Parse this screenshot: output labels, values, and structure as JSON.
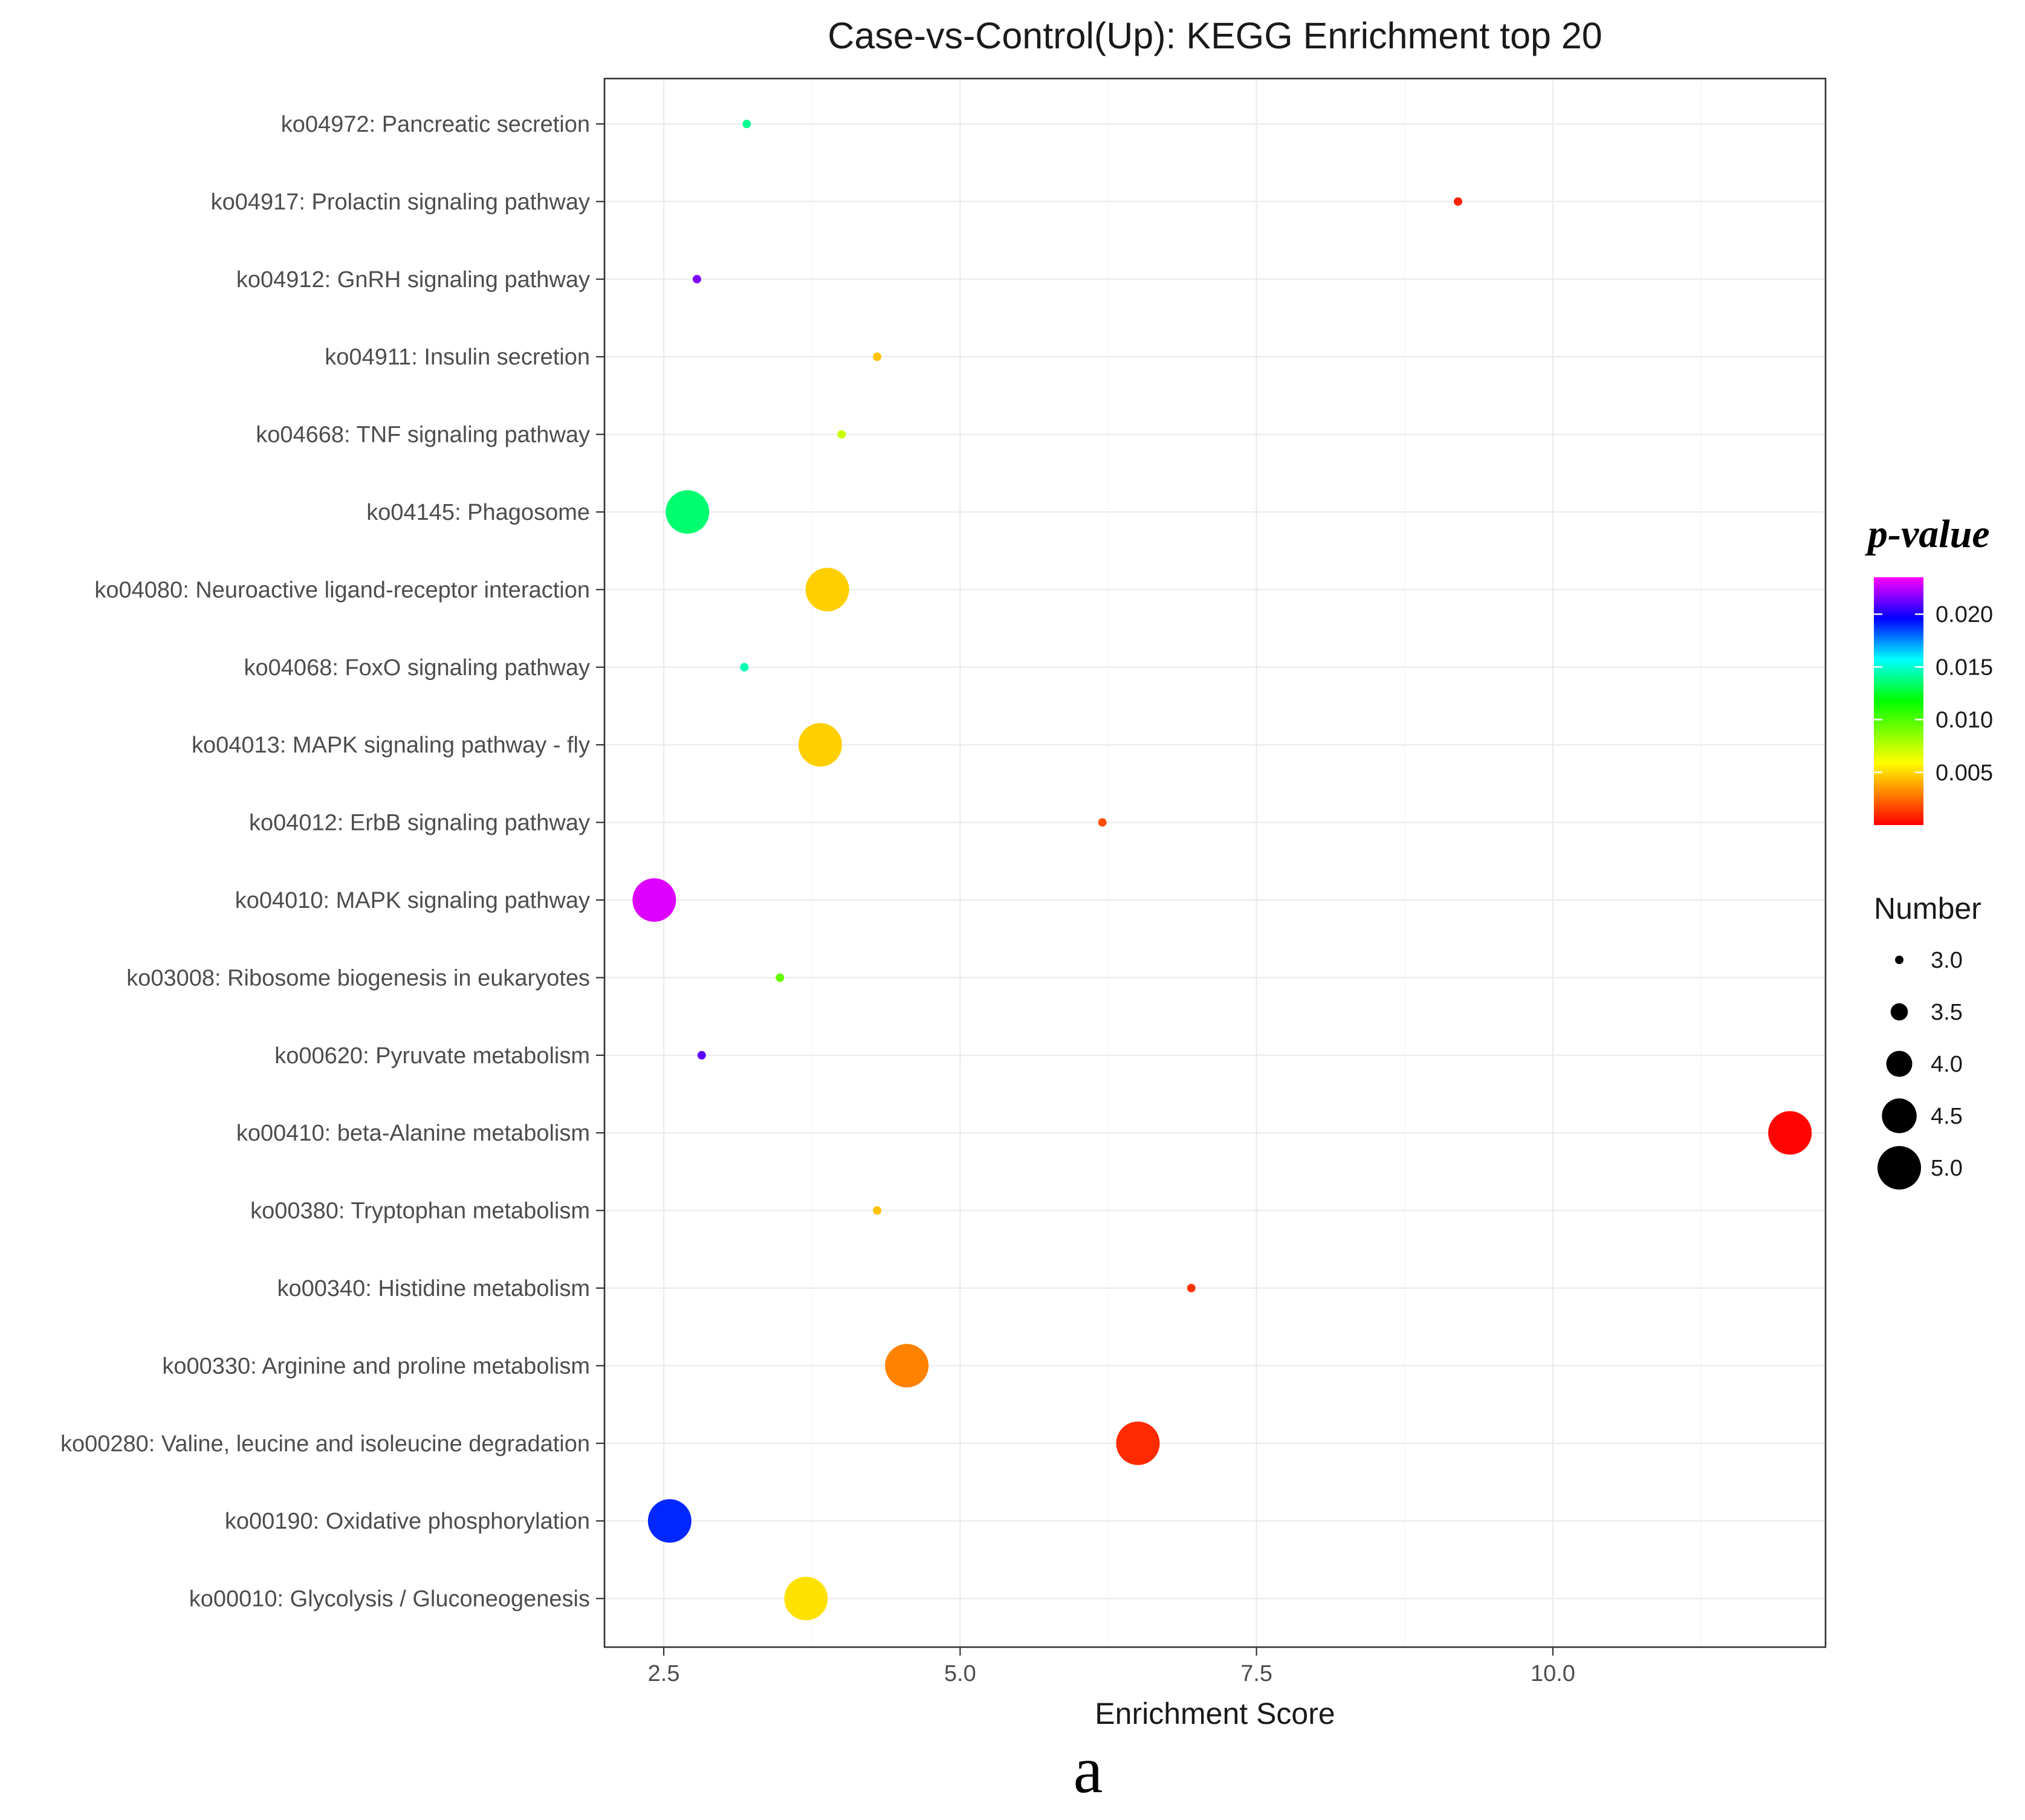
{
  "chart_data": {
    "type": "scatter",
    "title": "Case-vs-Control(Up): KEGG Enrichment top 20",
    "xlabel": "Enrichment Score",
    "ylabel": "",
    "xlim": [
      2.0,
      12.3
    ],
    "x_ticks": [
      2.5,
      5.0,
      7.5,
      10.0
    ],
    "x_tick_labels": [
      "2.5",
      "5.0",
      "7.5",
      "10.0"
    ],
    "grid": true,
    "panel_label": "a",
    "categories": [
      "ko04972: Pancreatic secretion",
      "ko04917: Prolactin signaling pathway",
      "ko04912: GnRH signaling pathway",
      "ko04911: Insulin secretion",
      "ko04668: TNF signaling pathway",
      "ko04145: Phagosome",
      "ko04080: Neuroactive ligand-receptor interaction",
      "ko04068: FoxO signaling pathway",
      "ko04013: MAPK signaling pathway - fly",
      "ko04012: ErbB signaling pathway",
      "ko04010: MAPK signaling pathway",
      "ko03008: Ribosome biogenesis in eukaryotes",
      "ko00620: Pyruvate metabolism",
      "ko00410: beta-Alanine metabolism",
      "ko00380: Tryptophan metabolism",
      "ko00340: Histidine metabolism",
      "ko00330: Arginine and proline metabolism",
      "ko00280: Valine, leucine and isoleucine degradation",
      "ko00190: Oxidative phosphorylation",
      "ko00010: Glycolysis / Gluconeogenesis"
    ],
    "points": [
      {
        "term": "ko04972: Pancreatic secretion",
        "x": 3.2,
        "number": 3,
        "p_value": 0.014
      },
      {
        "term": "ko04917: Prolactin signaling pathway",
        "x": 9.2,
        "number": 3,
        "p_value": 0.0008
      },
      {
        "term": "ko04912: GnRH signaling pathway",
        "x": 2.78,
        "number": 3,
        "p_value": 0.0215
      },
      {
        "term": "ko04911: Insulin secretion",
        "x": 4.3,
        "number": 3,
        "p_value": 0.0045
      },
      {
        "term": "ko04668: TNF signaling pathway",
        "x": 4.0,
        "number": 3,
        "p_value": 0.0072
      },
      {
        "term": "ko04145: Phagosome",
        "x": 2.7,
        "number": 5,
        "p_value": 0.0135
      },
      {
        "term": "ko04080: Neuroactive ligand-receptor interaction",
        "x": 3.88,
        "number": 5,
        "p_value": 0.0048
      },
      {
        "term": "ko04068: FoxO signaling pathway",
        "x": 3.18,
        "number": 3,
        "p_value": 0.0145
      },
      {
        "term": "ko04013: MAPK signaling pathway - fly",
        "x": 3.82,
        "number": 5,
        "p_value": 0.0048
      },
      {
        "term": "ko04012: ErbB signaling pathway",
        "x": 6.2,
        "number": 3,
        "p_value": 0.0018
      },
      {
        "term": "ko04010: MAPK signaling pathway",
        "x": 2.42,
        "number": 5,
        "p_value": 0.023
      },
      {
        "term": "ko03008: Ribosome biogenesis in eukaryotes",
        "x": 3.48,
        "number": 3,
        "p_value": 0.0095
      },
      {
        "term": "ko00620: Pyruvate metabolism",
        "x": 2.82,
        "number": 3,
        "p_value": 0.021
      },
      {
        "term": "ko00410: beta-Alanine metabolism",
        "x": 12.0,
        "number": 5,
        "p_value": 0.0001
      },
      {
        "term": "ko00380: Tryptophan metabolism",
        "x": 4.3,
        "number": 3,
        "p_value": 0.0045
      },
      {
        "term": "ko00340: Histidine metabolism",
        "x": 6.95,
        "number": 3,
        "p_value": 0.0012
      },
      {
        "term": "ko00330: Arginine and proline metabolism",
        "x": 4.55,
        "number": 5,
        "p_value": 0.003
      },
      {
        "term": "ko00280: Valine, leucine and isoleucine degradation",
        "x": 6.5,
        "number": 5,
        "p_value": 0.001
      },
      {
        "term": "ko00190: Oxidative phosphorylation",
        "x": 2.55,
        "number": 5,
        "p_value": 0.019
      },
      {
        "term": "ko00010: Glycolysis / Gluconeogenesis",
        "x": 3.7,
        "number": 5,
        "p_value": 0.0052
      }
    ],
    "color_legend": {
      "title": "p-value",
      "range": [
        0.0,
        0.0235
      ],
      "ticks": [
        0.005,
        0.01,
        0.015,
        0.02
      ],
      "tick_labels": [
        "0.005",
        "0.010",
        "0.015",
        "0.020"
      ],
      "gradient_stops": [
        {
          "value": 0.0,
          "color": "#ff0000"
        },
        {
          "value": 0.0059,
          "color": "#ffff00"
        },
        {
          "value": 0.0118,
          "color": "#00ff00"
        },
        {
          "value": 0.0157,
          "color": "#00ffff"
        },
        {
          "value": 0.0196,
          "color": "#0000ff"
        },
        {
          "value": 0.0235,
          "color": "#ff00ff"
        }
      ]
    },
    "size_legend": {
      "title": "Number",
      "values": [
        3.0,
        3.5,
        4.0,
        4.5,
        5.0
      ],
      "labels": [
        "3.0",
        "3.5",
        "4.0",
        "4.5",
        "5.0"
      ]
    }
  }
}
